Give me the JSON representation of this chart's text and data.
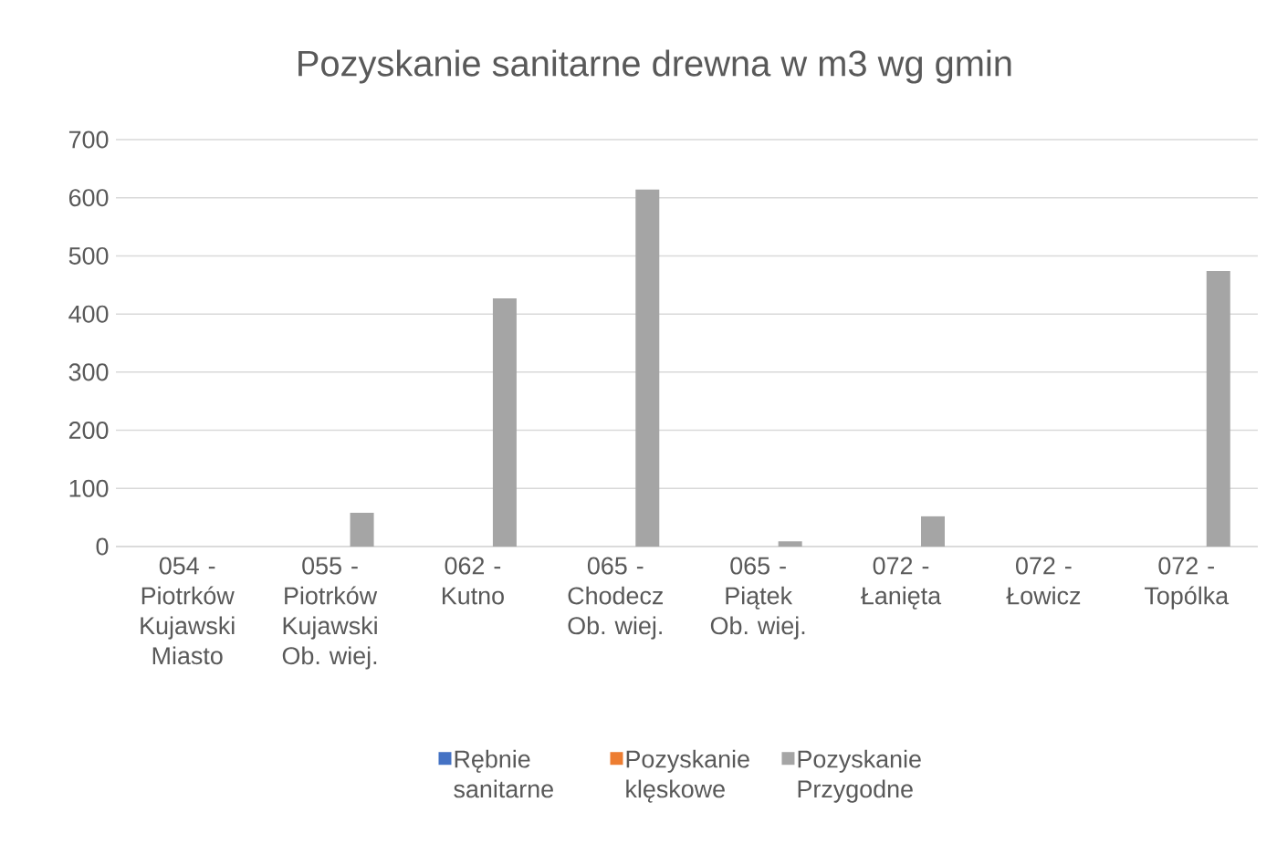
{
  "chart_data": {
    "type": "bar",
    "title": "Pozyskanie sanitarne drewna w m3 wg gmin",
    "categories": [
      "054 - Piotrków Kujawski Miasto",
      "055 - Piotrków Kujawski Ob. wiej.",
      "062 - Kutno",
      "065 - Chodecz Ob. wiej.",
      "065 - Piątek Ob. wiej.",
      "072 - Łanięta",
      "072 - Łowicz",
      "072 - Topólka"
    ],
    "series": [
      {
        "name": "Rębnie sanitarne",
        "color": "#4472c4",
        "values": [
          0,
          0,
          0,
          0,
          0,
          0,
          0,
          0
        ]
      },
      {
        "name": "Pozyskanie klęskowe",
        "color": "#ed7d31",
        "values": [
          0,
          0,
          0,
          0,
          0,
          0,
          0,
          0
        ]
      },
      {
        "name": "Pozyskanie Przygodne",
        "color": "#a5a5a5",
        "values": [
          0,
          58,
          427,
          614,
          9,
          52,
          0,
          474
        ]
      }
    ],
    "ylim": [
      0,
      700
    ],
    "yticks": [
      0,
      100,
      200,
      300,
      400,
      500,
      600,
      700
    ],
    "grid": "y",
    "legend": "bottom"
  }
}
